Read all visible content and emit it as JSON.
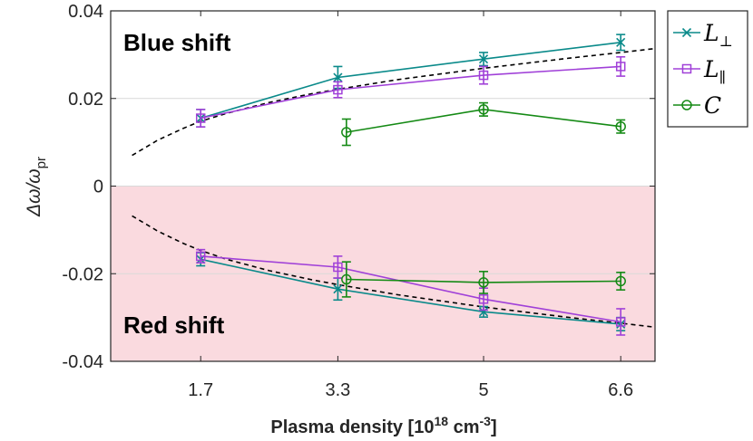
{
  "chart_data": {
    "type": "line",
    "title": "",
    "xlabel": "Plasma density [10",
    "xlabel_sup": "18",
    "xlabel_unit": " cm",
    "xlabel_unit_sup": "-3",
    "xlabel_end": "]",
    "ylabel_main": "Δω/ω",
    "ylabel_sub": "pr",
    "xlim": [
      0.65,
      7.0
    ],
    "ylim": [
      -0.04,
      0.04
    ],
    "x_ticks": [
      1.7,
      3.3,
      5,
      6.6
    ],
    "x_tick_labels": [
      "1.7",
      "3.3",
      "5",
      "6.6"
    ],
    "y_ticks": [
      -0.04,
      -0.02,
      0,
      0.02,
      0.04
    ],
    "y_tick_labels": [
      "-0.04",
      "-0.02",
      "0",
      "0.02",
      "0.04"
    ],
    "grid": true,
    "red_region": [
      -0.04,
      0
    ],
    "red_region_color": "#fadadf",
    "annotations": {
      "blue": {
        "text": "Blue shift",
        "color": "#0d2a6b"
      },
      "red": {
        "text": "Red shift",
        "color": "#ff1010"
      }
    },
    "series": [
      {
        "name": "L⊥",
        "label_main": "L",
        "label_sub": "⊥",
        "color": "#0a8a8a",
        "marker": "x",
        "branches": [
          {
            "x": [
              1.7,
              3.3,
              5.0,
              6.6
            ],
            "y": [
              0.0155,
              0.0248,
              0.029,
              0.0328
            ],
            "err": [
              0.002,
              0.0025,
              0.0015,
              0.0018
            ]
          },
          {
            "x": [
              1.7,
              3.3,
              5.0,
              6.6
            ],
            "y": [
              -0.0167,
              -0.0235,
              -0.0287,
              -0.0315
            ],
            "err": [
              0.0015,
              0.0025,
              0.0012,
              0.0015
            ]
          }
        ]
      },
      {
        "name": "L∥",
        "label_main": "L",
        "label_sub": "∥",
        "color": "#a040d8",
        "marker": "square",
        "branches": [
          {
            "x": [
              1.7,
              3.3,
              5.0,
              6.6
            ],
            "y": [
              0.0155,
              0.022,
              0.0253,
              0.0273
            ],
            "err": [
              0.002,
              0.0018,
              0.002,
              0.0022
            ]
          },
          {
            "x": [
              1.7,
              3.3,
              5.0,
              6.6
            ],
            "y": [
              -0.016,
              -0.0185,
              -0.0258,
              -0.031
            ],
            "err": [
              0.0015,
              0.0025,
              0.0025,
              0.003
            ]
          }
        ]
      },
      {
        "name": "C",
        "label_main": "C",
        "label_sub": "",
        "color": "#158a15",
        "marker": "circle",
        "branches": [
          {
            "x": [
              3.4,
              5.0,
              6.6
            ],
            "y": [
              0.0123,
              0.0175,
              0.0136
            ],
            "err": [
              0.003,
              0.0015,
              0.0015
            ]
          },
          {
            "x": [
              3.4,
              5.0,
              6.6
            ],
            "y": [
              -0.0213,
              -0.022,
              -0.0217
            ],
            "err": [
              0.004,
              0.0025,
              0.002
            ]
          }
        ]
      }
    ],
    "fit_curves": {
      "color": "#000000",
      "style": "dashed",
      "upper": {
        "x": [
          0.9,
          1.2,
          1.5,
          1.7,
          2.0,
          2.5,
          3.0,
          3.3,
          4.0,
          5.0,
          6.0,
          6.6,
          7.0
        ],
        "y": [
          0.007,
          0.0105,
          0.0132,
          0.0148,
          0.0166,
          0.0191,
          0.0211,
          0.0221,
          0.0243,
          0.0269,
          0.0292,
          0.0305,
          0.0314
        ]
      },
      "lower": {
        "x": [
          0.9,
          1.2,
          1.5,
          1.7,
          2.0,
          2.5,
          3.0,
          3.3,
          4.0,
          5.0,
          6.0,
          6.6,
          7.0
        ],
        "y": [
          -0.0068,
          -0.0103,
          -0.0131,
          -0.0147,
          -0.0167,
          -0.0193,
          -0.0214,
          -0.0225,
          -0.0248,
          -0.0276,
          -0.03,
          -0.0313,
          -0.0322
        ]
      }
    }
  }
}
